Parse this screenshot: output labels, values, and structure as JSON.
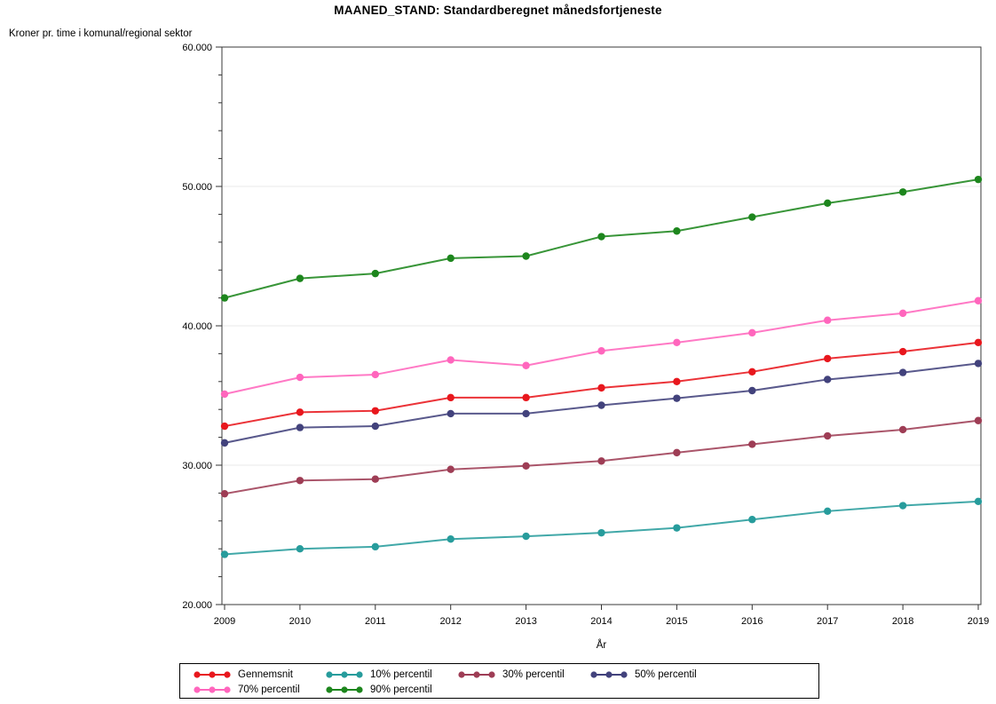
{
  "chart_data": {
    "type": "line",
    "title": "MAANED_STAND: Standardberegnet månedsfortjeneste",
    "ylabel": "Kroner pr. time i komunal/regional sektor",
    "xlabel": "År",
    "x": [
      2009,
      2010,
      2011,
      2012,
      2013,
      2014,
      2015,
      2016,
      2017,
      2018,
      2019
    ],
    "x_tick_labels": [
      "2009",
      "2010",
      "2011",
      "2012",
      "2013",
      "2014",
      "2015",
      "2016",
      "2017",
      "2018",
      "2019"
    ],
    "ylim": [
      20000,
      60000
    ],
    "y_tick_values": [
      20000,
      30000,
      40000,
      50000,
      60000
    ],
    "y_tick_labels": [
      "20.000",
      "30.000",
      "40.000",
      "50.000",
      "60.000"
    ],
    "y_minor_step": 2000,
    "grid": "horizontal major gridlines, light gray, plot framed in full box",
    "legend_position": "bottom-left, boxed, two rows",
    "marker": "filled circle on every point",
    "series": [
      {
        "name": "Gennemsnit",
        "color": "#e8171d",
        "values": [
          32800,
          33800,
          33900,
          34850,
          34850,
          35550,
          36000,
          36700,
          37650,
          38150,
          38800
        ]
      },
      {
        "name": "10% percentil",
        "color": "#279c9c",
        "values": [
          23600,
          24000,
          24150,
          24700,
          24900,
          25150,
          25500,
          26100,
          26700,
          27100,
          27400
        ]
      },
      {
        "name": "30% percentil",
        "color": "#9e3d55",
        "values": [
          27950,
          28900,
          29000,
          29700,
          29950,
          30300,
          30900,
          31500,
          32100,
          32550,
          33200
        ]
      },
      {
        "name": "50% percentil",
        "color": "#42427c",
        "values": [
          31600,
          32700,
          32800,
          33700,
          33700,
          34300,
          34800,
          35350,
          36150,
          36650,
          37300
        ]
      },
      {
        "name": "70% percentil",
        "color": "#ff66bd",
        "values": [
          35100,
          36300,
          36500,
          37550,
          37150,
          38200,
          38800,
          39500,
          40400,
          40900,
          41800
        ]
      },
      {
        "name": "90% percentil",
        "color": "#1d861d",
        "values": [
          42000,
          43400,
          43750,
          44850,
          45000,
          46400,
          46800,
          47800,
          48800,
          49600,
          50500
        ]
      }
    ],
    "frame_color": "#3a3a3a",
    "grid_color": "#e9e9e9",
    "tick_color": "#333333",
    "text_color": "#000000"
  }
}
